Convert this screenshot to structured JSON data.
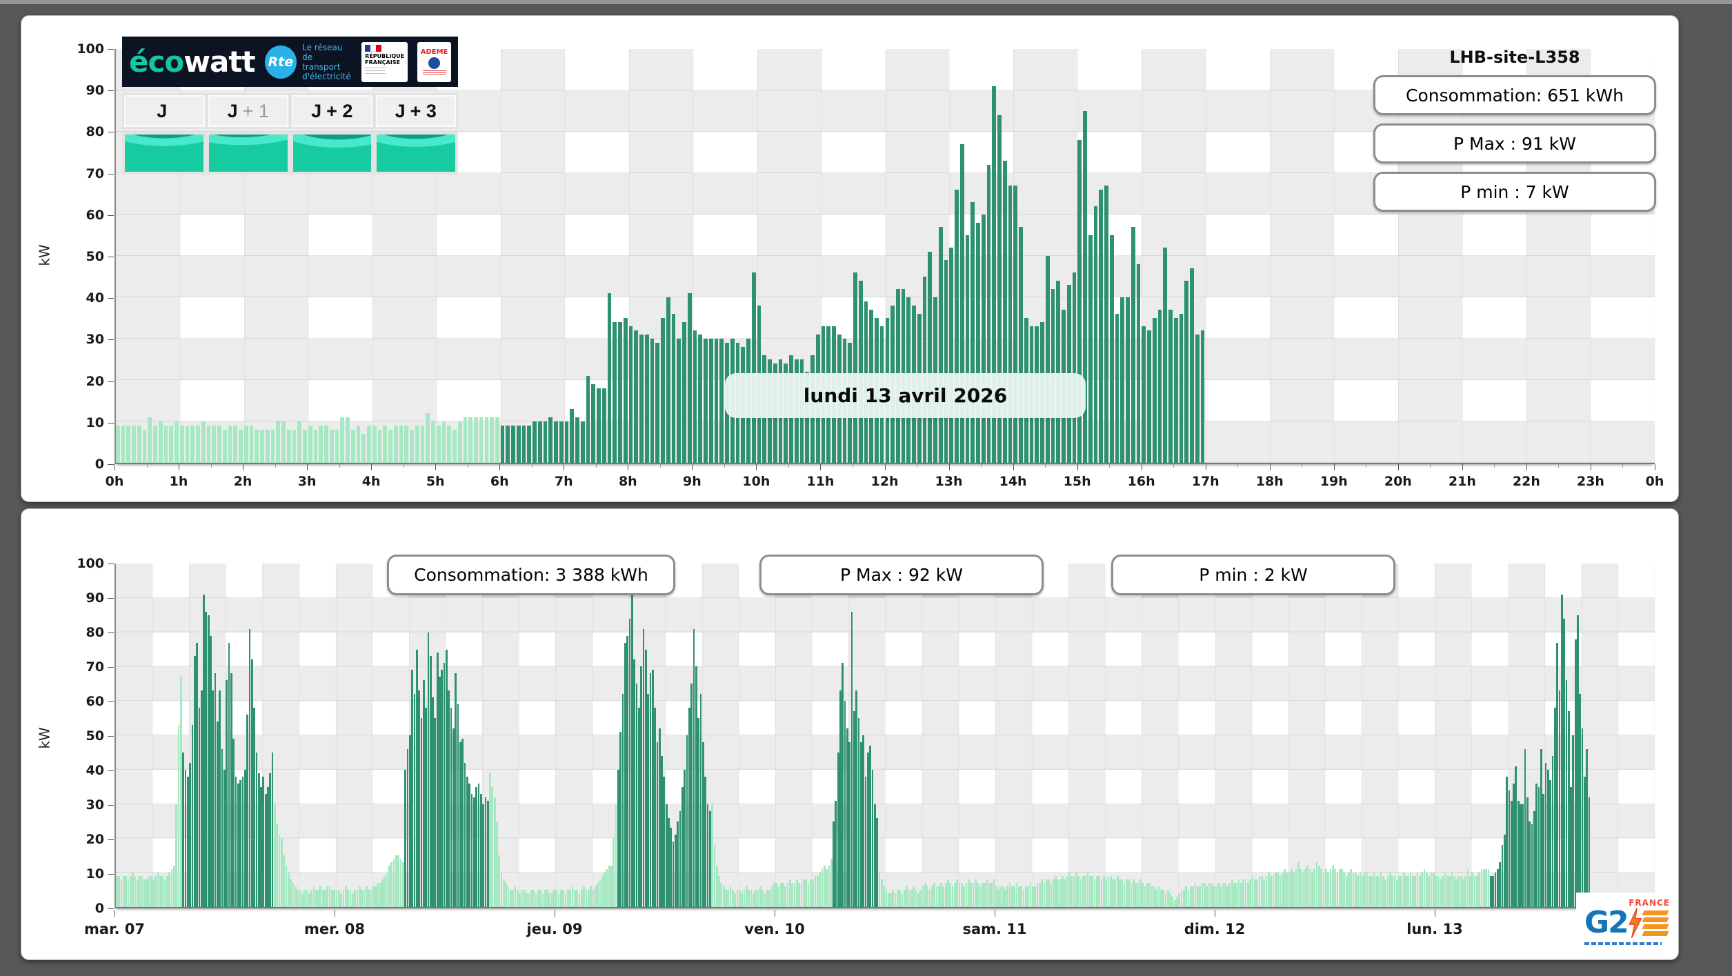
{
  "branding": {
    "ecowatt_eco": "éco",
    "ecowatt_watt": "watt",
    "rte_badge": "Rte",
    "rte_lines": [
      "Le réseau",
      "de transport",
      "d'électricité"
    ],
    "republique_lines": [
      "RÉPUBLIQUE",
      "FRANÇAISE"
    ],
    "ademe": "ADEME"
  },
  "day_tabs": [
    {
      "prefix": "J",
      "suffix": ""
    },
    {
      "prefix": "J",
      "suffix": "+ 1"
    },
    {
      "prefix": "J",
      "suffix": "+ 2"
    },
    {
      "prefix": "J",
      "suffix": "+ 3"
    }
  ],
  "footer_logo": {
    "g2": "G2",
    "france": "FRANCE"
  },
  "chart_data": [
    {
      "type": "bar",
      "title": "LHB-site-L358",
      "subtitle": "lundi 13 avril 2026",
      "ylabel": "kW",
      "ylim": [
        0,
        100
      ],
      "interval_minutes": 5,
      "slots_per_day": 288,
      "xticks": [
        "0h",
        "1h",
        "2h",
        "3h",
        "4h",
        "5h",
        "6h",
        "7h",
        "8h",
        "9h",
        "10h",
        "11h",
        "12h",
        "13h",
        "14h",
        "15h",
        "16h",
        "17h",
        "18h",
        "19h",
        "20h",
        "21h",
        "22h",
        "23h",
        "0h"
      ],
      "yticks": [
        "0",
        "10",
        "20",
        "30",
        "40",
        "50",
        "60",
        "70",
        "80",
        "90",
        "100"
      ],
      "annotations": [
        "Consommation: 651 kWh",
        "P Max :  91 kW",
        "P min : 7 kW"
      ],
      "colors": {
        "light": "#a5e8c2",
        "dark": "#2e9170"
      },
      "light_until_index": 72,
      "values": [
        9,
        9,
        9,
        9,
        9,
        8,
        11,
        9,
        10,
        9,
        9,
        10,
        9,
        9,
        9,
        9,
        10,
        9,
        9,
        9,
        8,
        9,
        9,
        8,
        9,
        9,
        8,
        8,
        8,
        8,
        10,
        10,
        8,
        8,
        10,
        8,
        9,
        8,
        9,
        9,
        8,
        8,
        11,
        11,
        8,
        9,
        7,
        9,
        9,
        8,
        9,
        8,
        9,
        9,
        9,
        8,
        9,
        9,
        12,
        10,
        9,
        10,
        9,
        8,
        10,
        11,
        11,
        11,
        11,
        11,
        11,
        11,
        9,
        9,
        9,
        9,
        9,
        9,
        10,
        10,
        10,
        11,
        10,
        10,
        10,
        13,
        11,
        10,
        21,
        19,
        18,
        18,
        41,
        34,
        34,
        35,
        33,
        32,
        31,
        31,
        30,
        29,
        35,
        40,
        36,
        30,
        34,
        41,
        32,
        31,
        30,
        30,
        30,
        30,
        29,
        30,
        29,
        28,
        30,
        46,
        38,
        26,
        25,
        24,
        25,
        24,
        26,
        25,
        25,
        22,
        26,
        31,
        33,
        33,
        33,
        31,
        30,
        29,
        46,
        44,
        39,
        37,
        35,
        33,
        35,
        38,
        42,
        42,
        40,
        38,
        36,
        45,
        51,
        40,
        57,
        49,
        52,
        66,
        77,
        55,
        63,
        58,
        60,
        72,
        91,
        84,
        73,
        67,
        67,
        57,
        35,
        33,
        33,
        34,
        50,
        42,
        44,
        37,
        43,
        46,
        78,
        85,
        55,
        62,
        66,
        67,
        55,
        36,
        40,
        40,
        57,
        48,
        33,
        32,
        35,
        37,
        52,
        37,
        35,
        36,
        44,
        47,
        31,
        32
      ]
    },
    {
      "type": "bar",
      "ylabel": "kW",
      "ylim": [
        0,
        100
      ],
      "interval_minutes": 15,
      "slots_per_day": 96,
      "yticks": [
        "0",
        "10",
        "20",
        "30",
        "40",
        "50",
        "60",
        "70",
        "80",
        "90",
        "100"
      ],
      "annotations": [
        "Consommation: 3 388 kWh",
        "P Max :  92 kW",
        "P min : 2 kW"
      ],
      "colors": {
        "light": "#a5e8c2",
        "dark": "#2e9170"
      },
      "days": [
        {
          "label": "mar. 07",
          "dark_range": [
            29,
            69
          ],
          "values": [
            9,
            9,
            8,
            9,
            9,
            8,
            9,
            10,
            9,
            8,
            9,
            9,
            8,
            8,
            9,
            9,
            8,
            9,
            10,
            9,
            9,
            8,
            9,
            10,
            11,
            12,
            30,
            53,
            67,
            45,
            40,
            38,
            42,
            53,
            73,
            77,
            58,
            63,
            91,
            86,
            85,
            79,
            63,
            68,
            54,
            63,
            46,
            40,
            66,
            77,
            68,
            49,
            38,
            36,
            37,
            38,
            40,
            56,
            81,
            72,
            58,
            45,
            39,
            35,
            38,
            33,
            35,
            39,
            45,
            30,
            24,
            21,
            20,
            15,
            12,
            10,
            8,
            7,
            6,
            5,
            5,
            4,
            5,
            5,
            4,
            5,
            6,
            5,
            5,
            6,
            5,
            5,
            6,
            6,
            5,
            5
          ]
        },
        {
          "label": "mer. 08",
          "dark_range": [
            30,
            67
          ],
          "values": [
            5,
            5,
            4,
            5,
            6,
            5,
            5,
            4,
            5,
            5,
            6,
            5,
            5,
            6,
            5,
            5,
            6,
            6,
            7,
            7,
            8,
            9,
            10,
            12,
            13,
            14,
            15,
            15,
            14,
            13,
            40,
            46,
            50,
            69,
            62,
            75,
            63,
            55,
            66,
            58,
            80,
            73,
            61,
            55,
            74,
            67,
            69,
            71,
            75,
            63,
            58,
            52,
            68,
            59,
            48,
            49,
            42,
            38,
            36,
            33,
            32,
            35,
            36,
            33,
            30,
            32,
            31,
            39,
            35,
            32,
            25,
            15,
            10,
            8,
            7,
            6,
            5,
            5,
            6,
            5,
            4,
            5,
            5,
            4,
            4,
            5,
            5,
            4,
            5,
            5,
            4,
            5,
            5,
            4,
            4,
            5
          ]
        },
        {
          "label": "jeu. 09",
          "dark_range": [
            27,
            68
          ],
          "values": [
            5,
            4,
            5,
            5,
            4,
            5,
            5,
            6,
            5,
            5,
            4,
            5,
            6,
            5,
            5,
            6,
            5,
            6,
            7,
            8,
            9,
            10,
            11,
            12,
            12,
            20,
            30,
            40,
            51,
            62,
            77,
            79,
            84,
            92,
            72,
            65,
            58,
            70,
            81,
            75,
            62,
            68,
            69,
            58,
            48,
            52,
            44,
            38,
            30,
            26,
            23,
            19,
            21,
            25,
            28,
            35,
            40,
            50,
            58,
            65,
            81,
            70,
            55,
            62,
            48,
            38,
            30,
            28,
            30,
            18,
            12,
            9,
            7,
            6,
            5,
            5,
            6,
            5,
            4,
            5,
            5,
            4,
            5,
            6,
            5,
            5,
            4,
            5,
            5,
            6,
            5,
            4,
            5,
            5,
            6,
            7
          ]
        },
        {
          "label": "ven. 10",
          "dark_range": [
            25,
            45
          ],
          "values": [
            7,
            6,
            7,
            7,
            6,
            7,
            8,
            7,
            7,
            8,
            7,
            7,
            8,
            8,
            7,
            8,
            8,
            9,
            9,
            10,
            11,
            12,
            11,
            12,
            14,
            25,
            31,
            45,
            63,
            71,
            60,
            52,
            48,
            86,
            57,
            63,
            55,
            48,
            50,
            38,
            45,
            47,
            40,
            30,
            26,
            10,
            8,
            6,
            5,
            4,
            4,
            5,
            4,
            5,
            5,
            4,
            5,
            6,
            5,
            5,
            6,
            5,
            4,
            5,
            6,
            7,
            6,
            5,
            6,
            7,
            6,
            6,
            7,
            6,
            7,
            8,
            7,
            6,
            7,
            8,
            7,
            7,
            6,
            7,
            8,
            7,
            7,
            8,
            7,
            6,
            7,
            7,
            8,
            7,
            7,
            8
          ]
        },
        {
          "label": "sam. 11",
          "dark_range": [
            0,
            0
          ],
          "values": [
            6,
            5,
            6,
            6,
            5,
            6,
            7,
            6,
            6,
            7,
            6,
            6,
            5,
            6,
            6,
            7,
            6,
            6,
            7,
            7,
            8,
            7,
            8,
            8,
            7,
            8,
            9,
            8,
            8,
            9,
            8,
            9,
            10,
            9,
            9,
            10,
            9,
            8,
            9,
            9,
            10,
            9,
            9,
            8,
            9,
            9,
            8,
            9,
            8,
            9,
            9,
            8,
            8,
            9,
            8,
            8,
            7,
            8,
            8,
            7,
            8,
            7,
            7,
            8,
            7,
            6,
            7,
            7,
            6,
            6,
            5,
            6,
            5,
            5,
            4,
            5,
            4,
            3,
            2,
            3,
            4,
            5,
            5,
            6,
            5,
            6,
            6,
            7,
            6,
            6,
            7,
            7,
            6,
            7,
            7,
            6
          ]
        },
        {
          "label": "dim. 12",
          "dark_range": [
            0,
            0
          ],
          "values": [
            6,
            7,
            6,
            7,
            7,
            6,
            7,
            8,
            7,
            7,
            8,
            7,
            8,
            8,
            7,
            8,
            9,
            8,
            8,
            9,
            9,
            8,
            9,
            10,
            9,
            9,
            10,
            10,
            9,
            10,
            11,
            10,
            10,
            11,
            10,
            11,
            13,
            11,
            10,
            11,
            12,
            11,
            10,
            11,
            13,
            12,
            11,
            10,
            11,
            10,
            11,
            12,
            11,
            10,
            11,
            11,
            10,
            9,
            10,
            11,
            10,
            10,
            9,
            10,
            9,
            10,
            10,
            9,
            9,
            10,
            9,
            9,
            10,
            9,
            8,
            9,
            10,
            9,
            9,
            8,
            9,
            9,
            10,
            9,
            9,
            10,
            9,
            9,
            10,
            9,
            10,
            11,
            10,
            9,
            10,
            10
          ]
        },
        {
          "label": "lun. 13",
          "dark_range": [
            24,
            68
          ],
          "values": [
            9,
            9,
            8,
            9,
            10,
            9,
            9,
            10,
            9,
            8,
            9,
            9,
            8,
            9,
            11,
            9,
            10,
            9,
            9,
            10,
            11,
            11,
            11,
            11,
            9,
            9,
            10,
            11,
            13,
            18,
            21,
            38,
            34,
            31,
            36,
            41,
            31,
            30,
            30,
            46,
            32,
            25,
            24,
            28,
            36,
            35,
            46,
            33,
            42,
            40,
            37,
            44,
            58,
            77,
            63,
            91,
            84,
            66,
            57,
            35,
            50,
            78,
            85,
            62,
            52,
            38,
            46,
            32,
            0,
            0,
            0,
            0,
            0,
            0,
            0,
            0,
            0,
            0,
            0,
            0,
            0,
            0,
            0,
            0,
            0,
            0,
            0,
            0,
            0,
            0,
            0,
            0,
            0,
            0,
            0,
            0
          ]
        }
      ]
    }
  ]
}
